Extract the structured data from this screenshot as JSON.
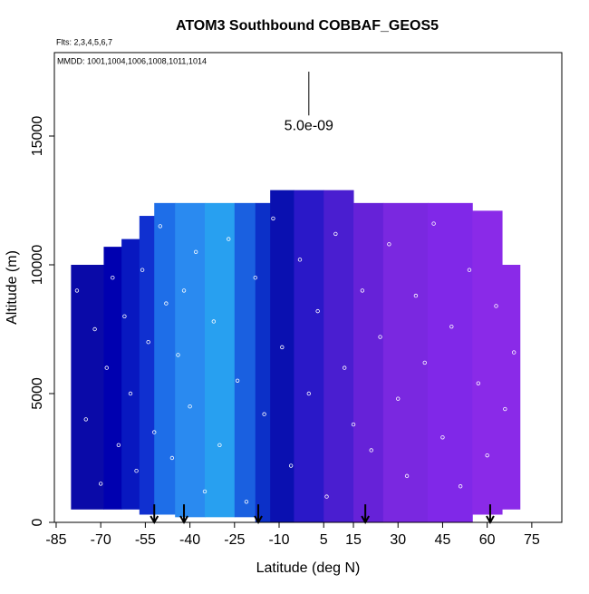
{
  "chart_data": {
    "type": "curtain",
    "title": "ATOM3 Southbound COBBAF_GEOS5",
    "subtitle": "Flts: 2,3,4,5,6,7",
    "annotation": "MMDD: 1001,1004,1006,1008,1011,1014",
    "x_label": "Latitude (deg N)",
    "y_label": "Altitude (m)",
    "xlim": [
      -85.6,
      85.1
    ],
    "ylim": [
      0,
      18240
    ],
    "xticks": [
      -85,
      -70,
      -55,
      -40,
      -25,
      -10,
      5,
      15,
      30,
      45,
      60,
      75
    ],
    "yticks": [
      0,
      5000,
      10000,
      15000
    ],
    "cells": [
      {
        "lat": [
          -80,
          -69
        ],
        "alt": [
          500,
          10000
        ],
        "color": "#0a0aa8"
      },
      {
        "lat": [
          -69,
          -63
        ],
        "alt": [
          500,
          10700
        ],
        "color": "#0000b0"
      },
      {
        "lat": [
          -63,
          -57
        ],
        "alt": [
          500,
          11000
        ],
        "color": "#0818c0"
      },
      {
        "lat": [
          -57,
          -52
        ],
        "alt": [
          300,
          11900
        ],
        "color": "#1030d0"
      },
      {
        "lat": [
          -52,
          -45
        ],
        "alt": [
          300,
          12400
        ],
        "color": "#1e6ee8"
      },
      {
        "lat": [
          -45,
          -35
        ],
        "alt": [
          200,
          12400
        ],
        "color": "#2a8af0"
      },
      {
        "lat": [
          -35,
          -25
        ],
        "alt": [
          200,
          12400
        ],
        "color": "#28a0f0"
      },
      {
        "lat": [
          -25,
          -18
        ],
        "alt": [
          200,
          12400
        ],
        "color": "#1a60e0"
      },
      {
        "lat": [
          -18,
          -13
        ],
        "alt": [
          0,
          12400
        ],
        "color": "#0c30c8"
      },
      {
        "lat": [
          -13,
          -5
        ],
        "alt": [
          0,
          12900
        ],
        "color": "#0a10b0"
      },
      {
        "lat": [
          -5,
          5
        ],
        "alt": [
          0,
          12900
        ],
        "color": "#2a18c8"
      },
      {
        "lat": [
          5,
          15
        ],
        "alt": [
          0,
          12900
        ],
        "color": "#4a1ed0"
      },
      {
        "lat": [
          15,
          25
        ],
        "alt": [
          0,
          12400
        ],
        "color": "#6622d8"
      },
      {
        "lat": [
          25,
          40
        ],
        "alt": [
          0,
          12400
        ],
        "color": "#7a28e0"
      },
      {
        "lat": [
          40,
          55
        ],
        "alt": [
          0,
          12400
        ],
        "color": "#8028e8"
      },
      {
        "lat": [
          55,
          65
        ],
        "alt": [
          300,
          12100
        ],
        "color": "#8a2ae8"
      },
      {
        "lat": [
          65,
          71
        ],
        "alt": [
          500,
          10000
        ],
        "color": "#8a2ae8"
      }
    ],
    "points": {
      "color": "#ffffff",
      "x": [
        -78,
        -75,
        -72,
        -70,
        -68,
        -66,
        -64,
        -62,
        -60,
        -58,
        -56,
        -54,
        -52,
        -50,
        -48,
        -46,
        -44,
        -42,
        -40,
        -38,
        -35,
        -32,
        -30,
        -27,
        -24,
        -21,
        -18,
        -15,
        -12,
        -9,
        -6,
        -3,
        0,
        3,
        6,
        9,
        12,
        15,
        18,
        21,
        24,
        27,
        30,
        33,
        36,
        39,
        42,
        45,
        48,
        51,
        54,
        57,
        60,
        63,
        66,
        69
      ],
      "y": [
        9000,
        4000,
        7500,
        1500,
        6000,
        9500,
        3000,
        8000,
        5000,
        2000,
        9800,
        7000,
        3500,
        11500,
        8500,
        2500,
        6500,
        9000,
        4500,
        10500,
        1200,
        7800,
        3000,
        11000,
        5500,
        800,
        9500,
        4200,
        11800,
        6800,
        2200,
        10200,
        5000,
        8200,
        1000,
        11200,
        6000,
        3800,
        9000,
        2800,
        7200,
        10800,
        4800,
        1800,
        8800,
        6200,
        11600,
        3300,
        7600,
        1400,
        9800,
        5400,
        2600,
        8400,
        4400,
        6600
      ]
    },
    "arrows": {
      "color": "#000000",
      "lat": [
        -52,
        -42,
        -17,
        19,
        61
      ],
      "alt": [
        700,
        0
      ]
    },
    "scale_bar": {
      "label": "5.0e-09",
      "lat": 0,
      "alt": [
        17500,
        15800
      ]
    }
  }
}
